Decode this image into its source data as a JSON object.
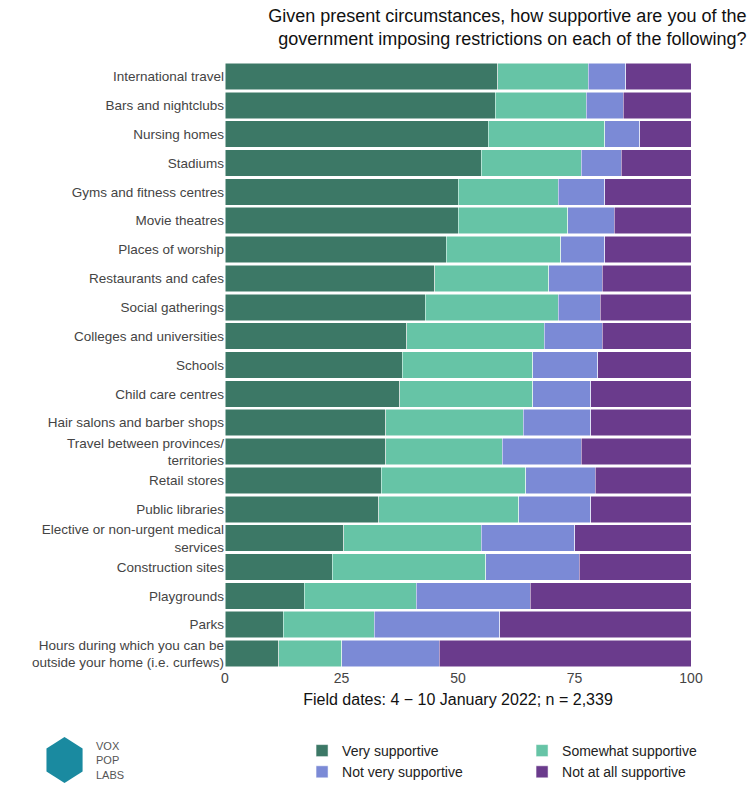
{
  "chart_data": {
    "type": "bar",
    "title": "Given present circumstances, how supportive are you of the\ngovernment imposing restrictions on each of the following?",
    "x_label": "Field dates: 4 − 10 January 2022; n = 2,339",
    "logo": "VOX\nPOP\nLABS",
    "orientation": "horizontal",
    "stacked": true,
    "grid": false,
    "legend": "bottom",
    "xlim": [
      0,
      100
    ],
    "xticks": [
      0,
      25,
      50,
      75,
      100
    ],
    "categories": [
      "International travel",
      "Bars and nightclubs",
      "Nursing homes",
      "Stadiums",
      "Gyms and fitness centres",
      "Movie theatres",
      "Places of worship",
      "Restaurants and cafes",
      "Social gatherings",
      "Colleges and universities",
      "Schools",
      "Child care centres",
      "Hair salons and barber shops",
      "Travel between provinces/\nterritories",
      "Retail stores",
      "Public libraries",
      "Elective or non-urgent medical\nservices",
      "Construction sites",
      "Playgrounds",
      "Parks",
      "Hours during which you can be\noutside your home (i.e. curfews)"
    ],
    "series": [
      {
        "name": "Very supportive",
        "color": "#3c7866",
        "values": [
          58.5,
          58,
          56.5,
          55,
          50,
          50,
          47.5,
          45,
          43,
          39,
          38,
          37.5,
          34.5,
          34.5,
          33.5,
          33,
          25.5,
          23,
          17,
          12.5,
          11.5
        ]
      },
      {
        "name": "Somewhat supportive",
        "color": "#66c4a6",
        "values": [
          19.5,
          19.5,
          25,
          21.5,
          21.5,
          23.5,
          24.5,
          24.5,
          28.5,
          29.5,
          28,
          28.5,
          29.5,
          25,
          31,
          30,
          29.5,
          33,
          24,
          19.5,
          13.5
        ]
      },
      {
        "name": "Not very supportive",
        "color": "#7b8ad6",
        "values": [
          8,
          8,
          7.5,
          8.5,
          10,
          10,
          9.5,
          11.5,
          9,
          12.5,
          14,
          12.5,
          14.5,
          17,
          15,
          15.5,
          20,
          20,
          24.5,
          27,
          21
        ]
      },
      {
        "name": "Not at all supportive",
        "color": "#6a3b8c",
        "values": [
          14,
          14.5,
          11,
          15,
          18.5,
          16.5,
          18.5,
          19,
          19.5,
          19,
          20,
          21.5,
          21.5,
          23.5,
          20.5,
          21.5,
          25,
          24,
          34.5,
          41,
          54
        ]
      }
    ]
  }
}
